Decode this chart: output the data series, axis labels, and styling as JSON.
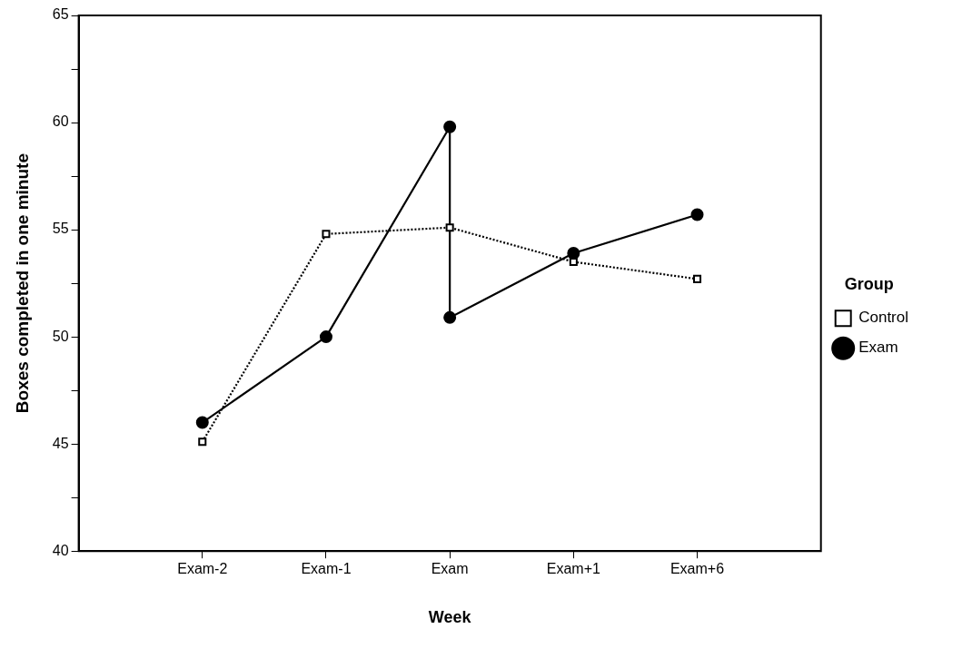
{
  "chart_data": {
    "type": "line",
    "xlabel": "Week",
    "ylabel": "Boxes completed in one minute",
    "legend_title": "Group",
    "legend": "right",
    "grid": false,
    "categories": [
      "Exam-2",
      "Exam-1",
      "Exam",
      "Exam+1",
      "Exam+6"
    ],
    "ylim": [
      40,
      65
    ],
    "yticks": [
      40,
      {
        "value": 42.5,
        "label": null
      },
      45,
      {
        "value": 47.5,
        "label": null
      },
      50,
      {
        "value": 52.5,
        "label": null
      },
      55,
      {
        "value": 57.5,
        "label": null
      },
      60,
      {
        "value": 62.5,
        "label": null
      },
      65
    ],
    "series": [
      {
        "name": "Control",
        "color": "#000000",
        "marker": "square",
        "line_style": "dotted",
        "values": [
          45.1,
          54.8,
          55.1,
          53.5,
          52.7
        ]
      },
      {
        "name": "Exam",
        "color": "#000000",
        "marker": "circle",
        "line_style": "solid",
        "x": [
          "Exam-2",
          "Exam-1",
          "Exam",
          "Exam",
          "Exam+1",
          "Exam+6"
        ],
        "values": [
          46.0,
          50.0,
          59.8,
          50.9,
          53.9,
          55.7
        ]
      }
    ]
  }
}
